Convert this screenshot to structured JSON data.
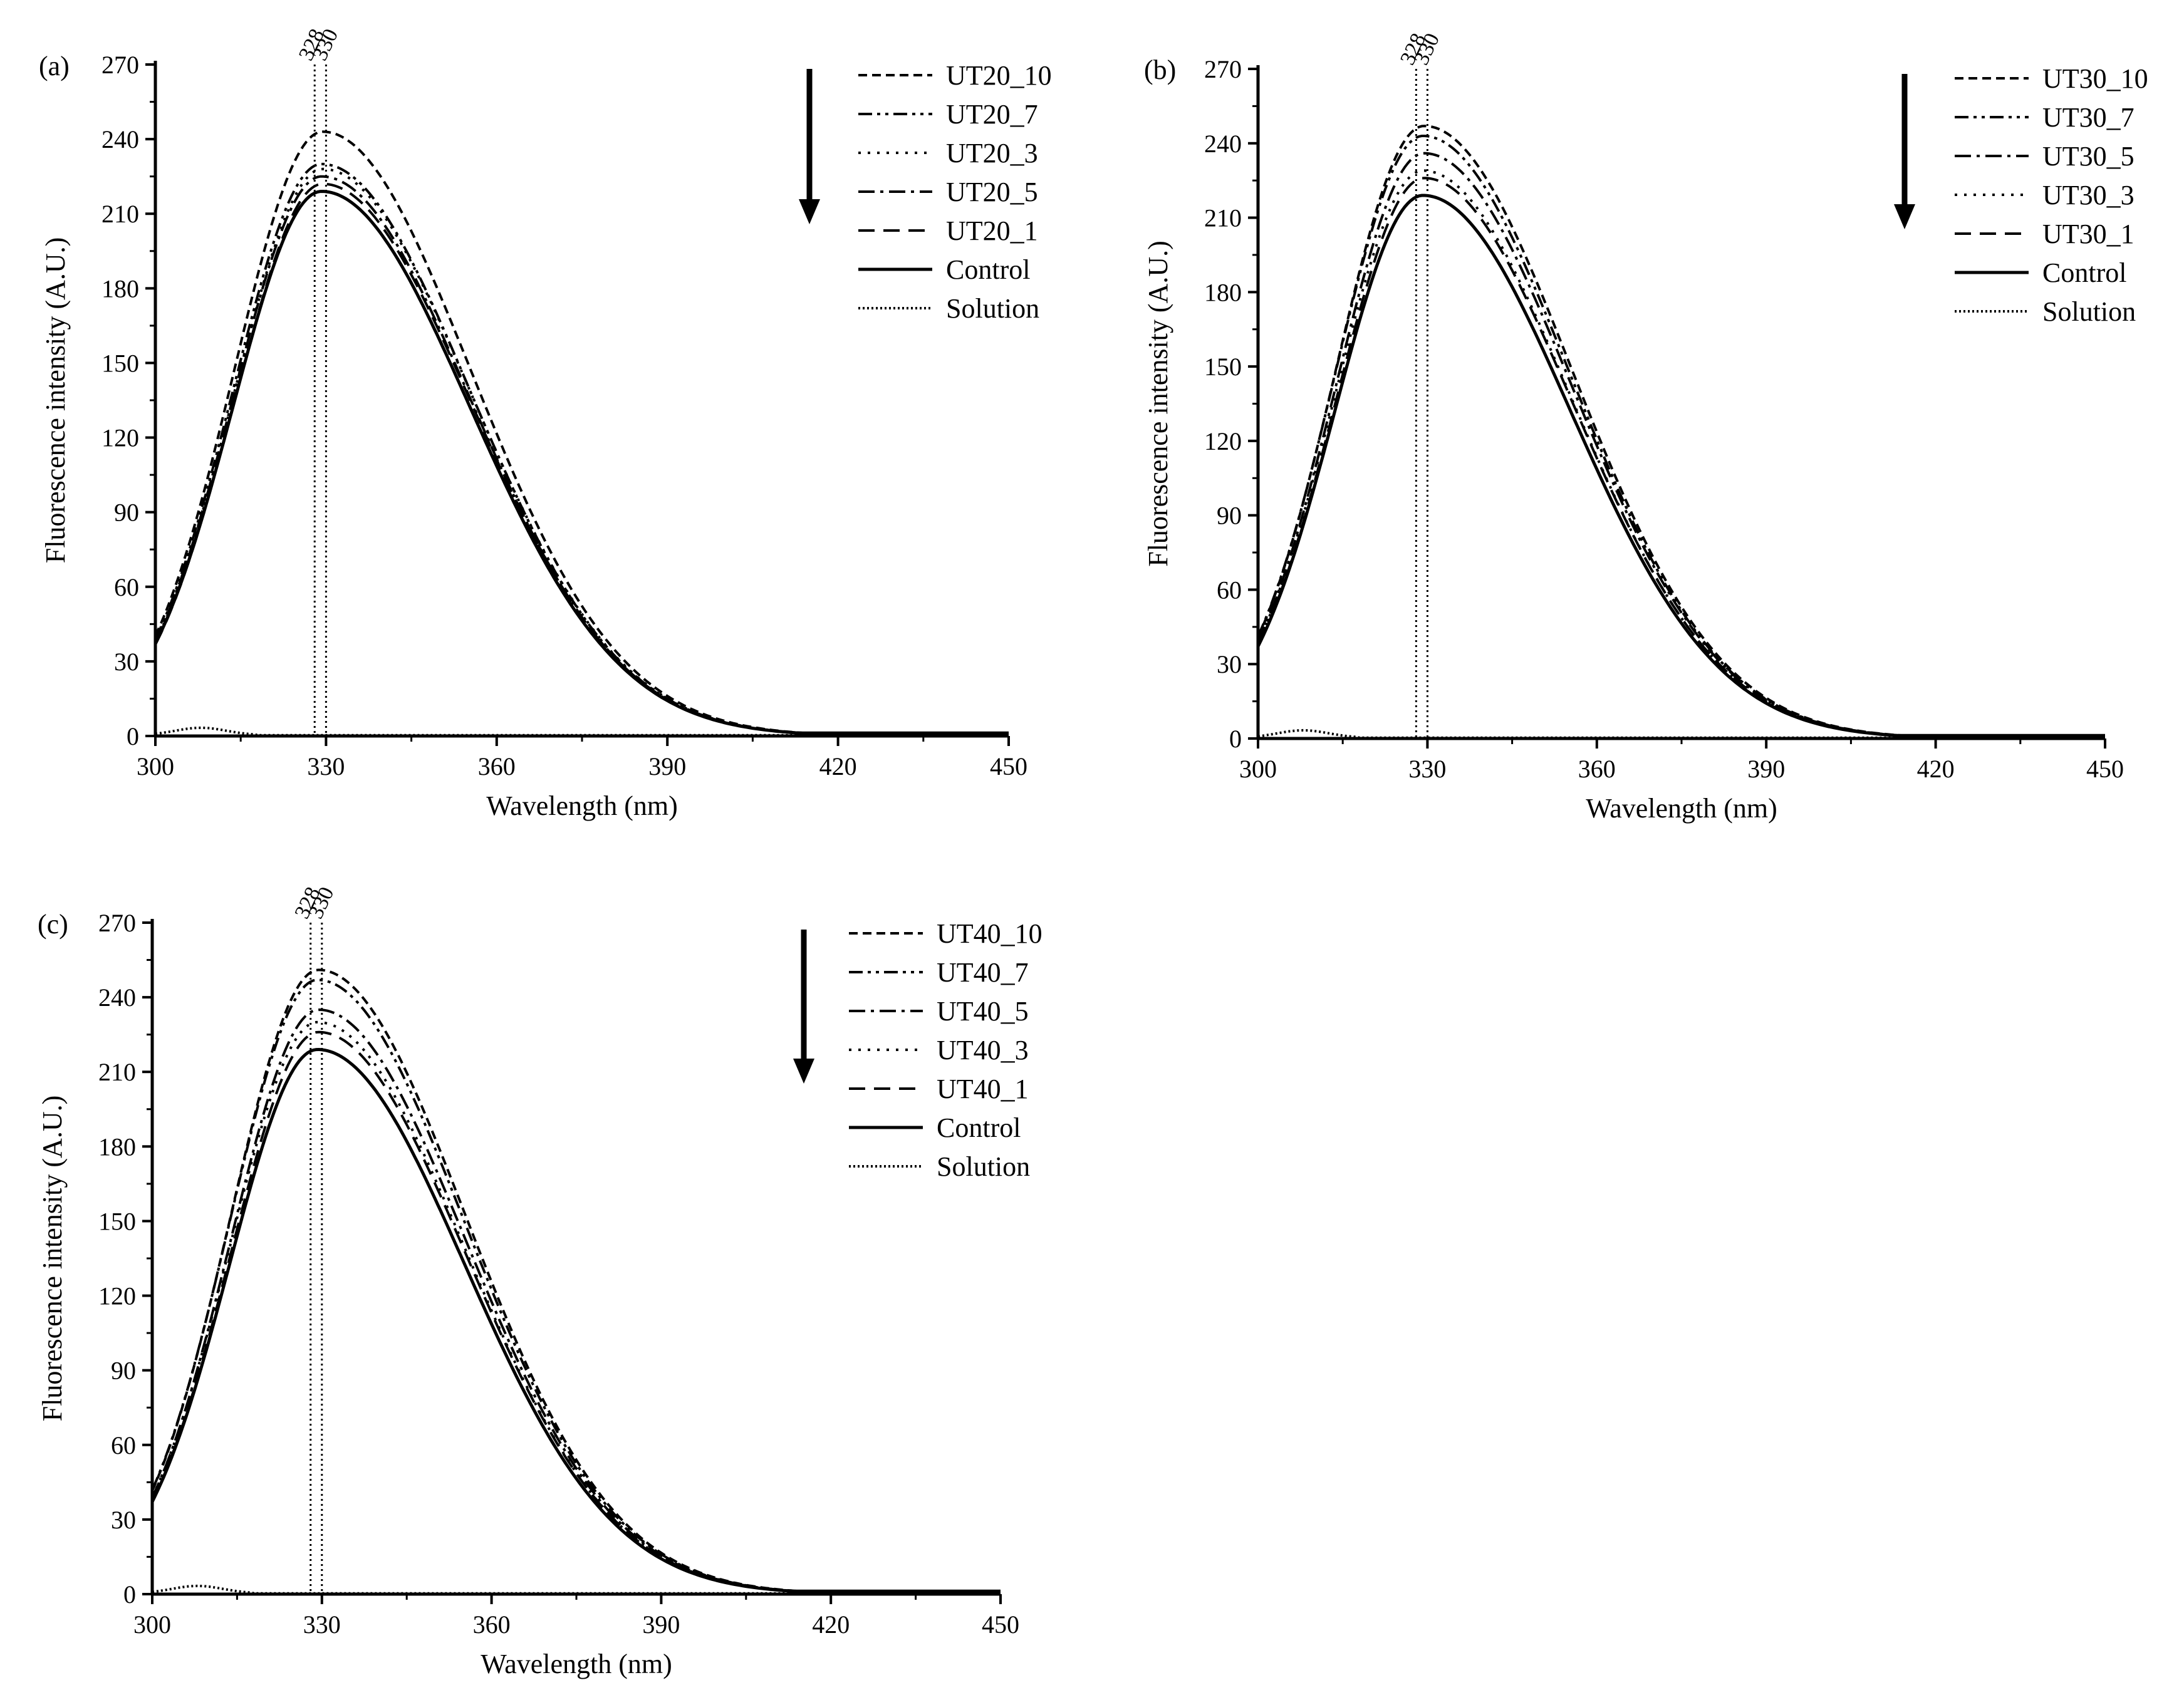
{
  "chart_data": [
    {
      "type": "line",
      "panel_label": "(a)",
      "xlabel": "Wavelength (nm)",
      "ylabel": "Fluorescence intensity (A.U.)",
      "xlim": [
        300,
        450
      ],
      "ylim": [
        0,
        270
      ],
      "xticks": [
        "300",
        "330",
        "360",
        "390",
        "420",
        "450"
      ],
      "yticks": [
        "0",
        "30",
        "60",
        "90",
        "120",
        "150",
        "180",
        "210",
        "240",
        "270"
      ],
      "vlines": [
        {
          "x": 328,
          "label": "328"
        },
        {
          "x": 330,
          "label": "330"
        }
      ],
      "arrow": "down",
      "series": [
        {
          "name": "UT20_10",
          "style": "short-dash",
          "peak_x": 329,
          "peak": 243
        },
        {
          "name": "UT20_7",
          "style": "dash-dot-dot",
          "peak_x": 329,
          "peak": 230
        },
        {
          "name": "UT20_3",
          "style": "dot",
          "peak_x": 329,
          "peak": 228
        },
        {
          "name": "UT20_5",
          "style": "dash-dot",
          "peak_x": 329,
          "peak": 225
        },
        {
          "name": "UT20_1",
          "style": "dash",
          "peak_x": 329,
          "peak": 222
        },
        {
          "name": "Control",
          "style": "solid",
          "peak_x": 329,
          "peak": 219
        },
        {
          "name": "Solution",
          "style": "fine-dot",
          "peak_x": 308,
          "peak": 3
        }
      ]
    },
    {
      "type": "line",
      "panel_label": "(b)",
      "xlabel": "Wavelength (nm)",
      "ylabel": "Fluorescence intensity (A.U.)",
      "xlim": [
        300,
        450
      ],
      "ylim": [
        0,
        270
      ],
      "xticks": [
        "300",
        "330",
        "360",
        "390",
        "420",
        "450"
      ],
      "yticks": [
        "0",
        "30",
        "60",
        "90",
        "120",
        "150",
        "180",
        "210",
        "240",
        "270"
      ],
      "vlines": [
        {
          "x": 328,
          "label": "328"
        },
        {
          "x": 330,
          "label": "330"
        }
      ],
      "arrow": "down",
      "series": [
        {
          "name": "UT30_10",
          "style": "short-dash",
          "peak_x": 329,
          "peak": 247
        },
        {
          "name": "UT30_7",
          "style": "dash-dot-dot",
          "peak_x": 329,
          "peak": 243
        },
        {
          "name": "UT30_5",
          "style": "dash-dot",
          "peak_x": 329,
          "peak": 236
        },
        {
          "name": "UT30_3",
          "style": "dot",
          "peak_x": 329,
          "peak": 229
        },
        {
          "name": "UT30_1",
          "style": "dash",
          "peak_x": 329,
          "peak": 226
        },
        {
          "name": "Control",
          "style": "solid",
          "peak_x": 329,
          "peak": 219
        },
        {
          "name": "Solution",
          "style": "fine-dot",
          "peak_x": 308,
          "peak": 3
        }
      ]
    },
    {
      "type": "line",
      "panel_label": "(c)",
      "xlabel": "Wavelength (nm)",
      "ylabel": "Fluorescence intensity (A.U.)",
      "xlim": [
        300,
        450
      ],
      "ylim": [
        0,
        270
      ],
      "xticks": [
        "300",
        "330",
        "360",
        "390",
        "420",
        "450"
      ],
      "yticks": [
        "0",
        "30",
        "60",
        "90",
        "120",
        "150",
        "180",
        "210",
        "240",
        "270"
      ],
      "vlines": [
        {
          "x": 328,
          "label": "328"
        },
        {
          "x": 330,
          "label": "330"
        }
      ],
      "arrow": "down",
      "series": [
        {
          "name": "UT40_10",
          "style": "short-dash",
          "peak_x": 329,
          "peak": 251
        },
        {
          "name": "UT40_7",
          "style": "dash-dot-dot",
          "peak_x": 329,
          "peak": 247
        },
        {
          "name": "UT40_5",
          "style": "dash-dot",
          "peak_x": 329,
          "peak": 235
        },
        {
          "name": "UT40_3",
          "style": "dot",
          "peak_x": 329,
          "peak": 230
        },
        {
          "name": "UT40_1",
          "style": "dash",
          "peak_x": 329,
          "peak": 226
        },
        {
          "name": "Control",
          "style": "solid",
          "peak_x": 329,
          "peak": 219
        },
        {
          "name": "Solution",
          "style": "fine-dot",
          "peak_x": 308,
          "peak": 3
        }
      ]
    }
  ]
}
